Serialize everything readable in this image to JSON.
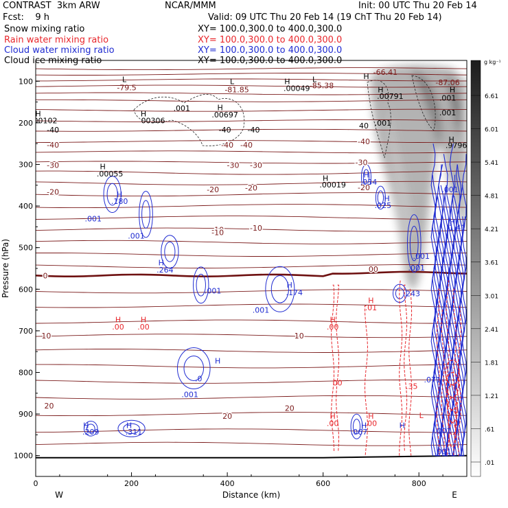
{
  "header": {
    "model": "CONTRAST  3km ARW",
    "center": "NCAR/MMM",
    "init": "Init: 00 UTC Thu 20 Feb 14",
    "fcst": "Fcst:    9 h",
    "valid": "Valid: 09 UTC Thu 20 Feb 14 (19 ChT Thu 20 Feb 14)"
  },
  "fields": [
    {
      "name": "Snow mixing ratio",
      "xy": "XY= 100.0,300.0 to 400.0,300.0",
      "color": "#000000"
    },
    {
      "name": "Rain water mixing ratio",
      "xy": "XY= 100.0,300.0 to 400.0,300.0",
      "color": "#e8262b"
    },
    {
      "name": "Cloud water mixing ratio",
      "xy": "XY= 100.0,300.0 to 400.0,300.0",
      "color": "#1f2bd1"
    },
    {
      "name": "Cloud ice mixing ratio",
      "xy": "XY= 100.0,300.0 to 400.0,300.0",
      "color": "#000000"
    }
  ],
  "chart_data": {
    "type": "cross-section",
    "xlabel": "Distance (km)",
    "ylabel": "Pressure (hPa)",
    "xlim": [
      0,
      900
    ],
    "ylim": [
      1050,
      50
    ],
    "x_ticks": [
      0,
      200,
      400,
      600,
      800
    ],
    "y_ticks": [
      100,
      200,
      300,
      400,
      500,
      600,
      700,
      800,
      900,
      1000
    ],
    "x_end_labels": {
      "left": "W",
      "right": "E"
    },
    "colorbar": {
      "unit": "g kg⁻¹",
      "levels": [
        ".01",
        ".61",
        "1.21",
        "1.81",
        "2.41",
        "3.01",
        "3.61",
        "4.21",
        "4.81",
        "5.41",
        "6.01",
        "6.61"
      ]
    },
    "isotherms": {
      "color": "#7a1a1a",
      "freezing_level_hpa": 567,
      "labels": [
        {
          "text": "-79.5",
          "x": 190,
          "p": 115
        },
        {
          "text": "-81.85",
          "x": 420,
          "p": 120
        },
        {
          "text": "-85.38",
          "x": 597,
          "p": 110
        },
        {
          "text": "-66.41",
          "x": 730,
          "p": 78
        },
        {
          "text": "-87.06",
          "x": 860,
          "p": 103
        },
        {
          "text": "-40",
          "x": 36,
          "p": 253
        },
        {
          "text": "-40",
          "x": 400,
          "p": 253
        },
        {
          "text": "-40",
          "x": 440,
          "p": 253
        },
        {
          "text": "-40",
          "x": 685,
          "p": 245
        },
        {
          "text": "-30",
          "x": 36,
          "p": 302
        },
        {
          "text": "-30",
          "x": 412,
          "p": 302
        },
        {
          "text": "-30",
          "x": 460,
          "p": 302
        },
        {
          "text": "-30",
          "x": 680,
          "p": 295
        },
        {
          "text": "-20",
          "x": 36,
          "p": 366
        },
        {
          "text": "-20",
          "x": 370,
          "p": 360
        },
        {
          "text": "-20",
          "x": 450,
          "p": 356
        },
        {
          "text": "-20",
          "x": 685,
          "p": 355
        },
        {
          "text": "-10",
          "x": 380,
          "p": 457
        },
        {
          "text": "-10",
          "x": 460,
          "p": 453
        },
        {
          "text": "-10",
          "x": 380,
          "p": 463
        },
        {
          "text": "0",
          "x": 20,
          "p": 567
        },
        {
          "text": "00",
          "x": 705,
          "p": 552
        },
        {
          "text": "10",
          "x": 22,
          "p": 712
        },
        {
          "text": "10",
          "x": 550,
          "p": 712
        },
        {
          "text": "20",
          "x": 28,
          "p": 880
        },
        {
          "text": "20",
          "x": 400,
          "p": 905
        },
        {
          "text": "20",
          "x": 530,
          "p": 886
        }
      ]
    },
    "snow_labels": [
      {
        "text": "L",
        "x": 185,
        "p": 95
      },
      {
        "text": "L",
        "x": 410,
        "p": 100
      },
      {
        "text": ".001",
        "x": 305,
        "p": 165
      },
      {
        "text": "H",
        "x": 385,
        "p": 163
      },
      {
        "text": ".00697",
        "x": 395,
        "p": 180
      },
      {
        "text": "H",
        "x": 525,
        "p": 100
      },
      {
        "text": ".00049",
        "x": 545,
        "p": 117
      },
      {
        "text": "L",
        "x": 582,
        "p": 95
      },
      {
        "text": "H",
        "x": 5,
        "p": 178
      },
      {
        "text": "00102",
        "x": 20,
        "p": 194
      },
      {
        "text": "H",
        "x": 225,
        "p": 178
      },
      {
        "text": "00306",
        "x": 245,
        "p": 194
      },
      {
        "text": "H",
        "x": 140,
        "p": 305
      },
      {
        "text": ".00055",
        "x": 155,
        "p": 322
      },
      {
        "text": "H",
        "x": 605,
        "p": 333
      },
      {
        "text": ".00019",
        "x": 620,
        "p": 349
      },
      {
        "text": "H",
        "x": 690,
        "p": 88
      },
      {
        "text": "H",
        "x": 720,
        "p": 120
      },
      {
        "text": ".00791",
        "x": 740,
        "p": 136
      },
      {
        "text": ".001",
        "x": 725,
        "p": 200
      },
      {
        "text": "H",
        "x": 870,
        "p": 120
      },
      {
        "text": ".001",
        "x": 860,
        "p": 140
      },
      {
        "text": ".001",
        "x": 860,
        "p": 175
      },
      {
        "text": "H",
        "x": 868,
        "p": 240
      },
      {
        "text": ".9796",
        "x": 878,
        "p": 254
      },
      {
        "text": "-40",
        "x": 395,
        "p": 217
      },
      {
        "text": "-40",
        "x": 455,
        "p": 217
      },
      {
        "text": "40",
        "x": 685,
        "p": 207
      },
      {
        "text": "-40",
        "x": 36,
        "p": 217
      }
    ],
    "cloud_water_labels": [
      {
        "text": "H",
        "x": 175,
        "p": 372
      },
      {
        "text": ".180",
        "x": 175,
        "p": 388
      },
      {
        "text": ".001",
        "x": 120,
        "p": 430
      },
      {
        "text": ".001",
        "x": 210,
        "p": 472
      },
      {
        "text": "H",
        "x": 262,
        "p": 536
      },
      {
        "text": ".264",
        "x": 270,
        "p": 553
      },
      {
        "text": ".001",
        "x": 370,
        "p": 604
      },
      {
        "text": "H",
        "x": 530,
        "p": 590
      },
      {
        "text": ".174",
        "x": 540,
        "p": 608
      },
      {
        "text": ".001",
        "x": 470,
        "p": 650
      },
      {
        "text": "H",
        "x": 690,
        "p": 325
      },
      {
        "text": ".034",
        "x": 695,
        "p": 342
      },
      {
        "text": "H",
        "x": 733,
        "p": 382
      },
      {
        "text": ".025",
        "x": 725,
        "p": 398
      },
      {
        "text": ".001",
        "x": 805,
        "p": 520
      },
      {
        "text": ".001",
        "x": 795,
        "p": 548
      },
      {
        "text": ".243",
        "x": 785,
        "p": 610
      },
      {
        "text": "H",
        "x": 380,
        "p": 772
      },
      {
        "text": ".001",
        "x": 322,
        "p": 853
      },
      {
        "text": ".0",
        "x": 340,
        "p": 815
      },
      {
        "text": "H",
        "x": 105,
        "p": 927
      },
      {
        "text": ".209",
        "x": 115,
        "p": 943
      },
      {
        "text": "H",
        "x": 195,
        "p": 927
      },
      {
        "text": ".311",
        "x": 205,
        "p": 943
      },
      {
        "text": "H",
        "x": 685,
        "p": 927
      },
      {
        "text": ".067",
        "x": 675,
        "p": 943
      },
      {
        "text": "H",
        "x": 765,
        "p": 927
      },
      {
        "text": ".071",
        "x": 828,
        "p": 817
      },
      {
        "text": ".001",
        "x": 865,
        "p": 360
      },
      {
        "text": "H",
        "x": 870,
        "p": 438
      },
      {
        "text": "1.41",
        "x": 880,
        "p": 452
      },
      {
        "text": ".001",
        "x": 850,
        "p": 940
      },
      {
        "text": ".001",
        "x": 850,
        "p": 990
      }
    ],
    "rain_labels": [
      {
        "text": "H",
        "x": 172,
        "p": 673
      },
      {
        "text": ".00",
        "x": 172,
        "p": 690
      },
      {
        "text": "H",
        "x": 225,
        "p": 673
      },
      {
        "text": ".00",
        "x": 225,
        "p": 690
      },
      {
        "text": "H",
        "x": 620,
        "p": 673
      },
      {
        "text": ".00",
        "x": 620,
        "p": 690
      },
      {
        "text": "H",
        "x": 700,
        "p": 627
      },
      {
        "text": ".01",
        "x": 700,
        "p": 644
      },
      {
        "text": "00",
        "x": 630,
        "p": 825
      },
      {
        "text": "H",
        "x": 620,
        "p": 905
      },
      {
        "text": ".00",
        "x": 620,
        "p": 922
      },
      {
        "text": "H",
        "x": 700,
        "p": 905
      },
      {
        "text": ".00",
        "x": 700,
        "p": 922
      },
      {
        "text": ".35",
        "x": 785,
        "p": 833
      },
      {
        "text": "L",
        "x": 805,
        "p": 903
      }
    ]
  }
}
